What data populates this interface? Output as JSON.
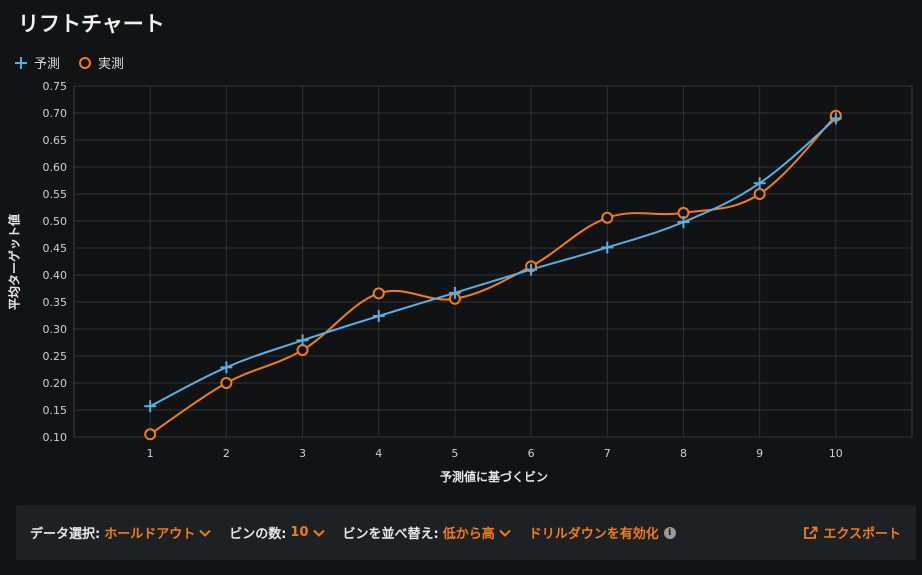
{
  "title": "リフトチャート",
  "legend": {
    "predicted_label": "予測",
    "actual_label": "実測"
  },
  "colors": {
    "predicted": "#5aaee6",
    "actual": "#f07d1a",
    "accent": "#f07d1a"
  },
  "icons": {
    "predicted_marker": "plus-icon",
    "actual_marker": "circle-icon",
    "dropdown": "chevron-down-icon",
    "info": "info-icon",
    "export": "export-icon"
  },
  "chart_data": {
    "type": "line",
    "xlabel": "予測値に基づくビン",
    "ylabel": "平均ターゲット値",
    "x": [
      1,
      2,
      3,
      4,
      5,
      6,
      7,
      8,
      9,
      10
    ],
    "xlim": [
      0,
      11
    ],
    "ylim": [
      0.1,
      0.75
    ],
    "yticks": [
      "0.10",
      "0.15",
      "0.20",
      "0.25",
      "0.30",
      "0.35",
      "0.40",
      "0.45",
      "0.50",
      "0.55",
      "0.60",
      "0.65",
      "0.70",
      "0.75"
    ],
    "xticks": [
      "1",
      "2",
      "3",
      "4",
      "5",
      "6",
      "7",
      "8",
      "9",
      "10"
    ],
    "grid": true,
    "legend_position": "top-left",
    "series": [
      {
        "name": "予測",
        "values": [
          0.157,
          0.229,
          0.279,
          0.324,
          0.367,
          0.41,
          0.451,
          0.498,
          0.57,
          0.69
        ]
      },
      {
        "name": "実測",
        "values": [
          0.105,
          0.2,
          0.261,
          0.366,
          0.356,
          0.416,
          0.506,
          0.515,
          0.55,
          0.695
        ]
      }
    ]
  },
  "toolbar": {
    "data_select_label": "データ選択:",
    "data_select_value": "ホールドアウト",
    "bins_label": "ビンの数:",
    "bins_value": "10",
    "sort_label": "ビンを並べ替え:",
    "sort_value": "低から高",
    "drilldown_label": "ドリルダウンを有効化",
    "info_glyph": "i",
    "export_label": "エクスポート"
  }
}
